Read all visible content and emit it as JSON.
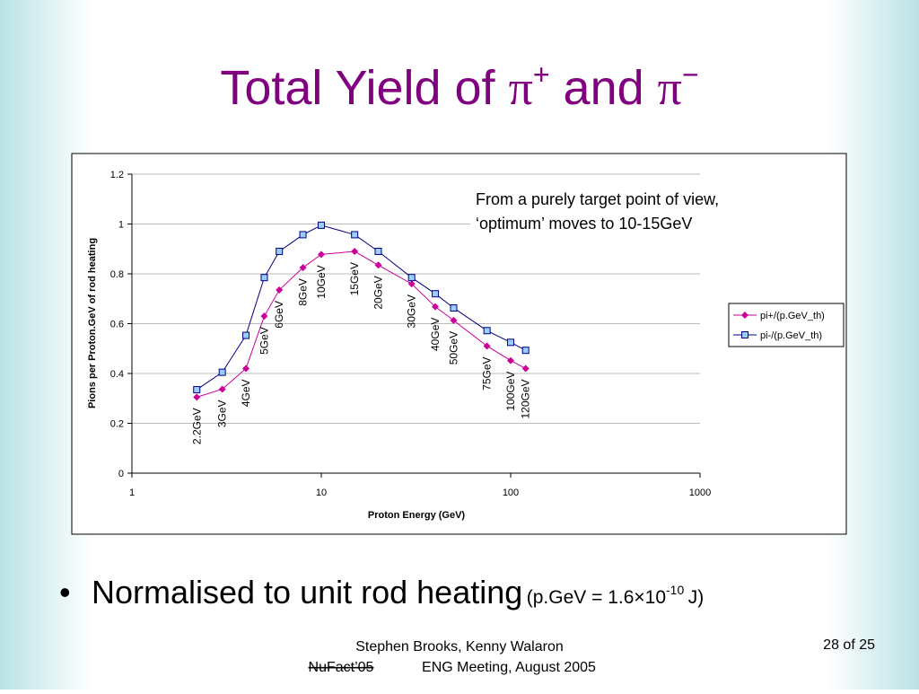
{
  "slide": {
    "title": [
      "Total Yield of",
      "π",
      "+",
      "and",
      "π",
      "−"
    ],
    "bullet": {
      "main": "Normalised to unit rod heating",
      "note": "(p.GeV = 1.6×10",
      "exponent": "-10",
      "unit": "J)"
    },
    "footer": {
      "authors": "Stephen Brooks, Kenny Walaron",
      "struck": "NuFact’05",
      "event": "ENG Meeting, August 2005",
      "page": "28 of 25"
    }
  },
  "chart_data": {
    "type": "line",
    "x_label": "Proton Energy (GeV)",
    "y_label": "Pions per Proton.GeV of rod heating",
    "annotation": [
      "From a purely target point of view,",
      "‘optimum’ moves to 10-15GeV"
    ],
    "x": [
      2.2,
      3,
      4,
      5,
      6,
      8,
      10,
      15,
      20,
      30,
      40,
      50,
      75,
      100,
      120
    ],
    "point_labels": [
      "2.2GeV",
      "3GeV",
      "4GeV",
      "5GeV",
      "6GeV",
      "8GeV",
      "10GeV",
      "15GeV",
      "20GeV",
      "30GeV",
      "40GeV",
      "50GeV",
      "75GeV",
      "100GeV",
      "120GeV"
    ],
    "series": [
      {
        "name": "pi+/(p.GeV_th)",
        "color": "#cc0099",
        "marker": "diamond",
        "values": [
          0.305,
          0.337,
          0.42,
          0.63,
          0.735,
          0.825,
          0.878,
          0.89,
          0.835,
          0.76,
          0.668,
          0.613,
          0.51,
          0.452,
          0.42
        ]
      },
      {
        "name": "pi-/(p.GeV_th)",
        "color": "#000080",
        "marker": "square",
        "values": [
          0.335,
          0.405,
          0.553,
          0.785,
          0.89,
          0.957,
          0.995,
          0.957,
          0.89,
          0.785,
          0.72,
          0.663,
          0.572,
          0.525,
          0.493
        ]
      }
    ],
    "xlim": [
      1,
      1000
    ],
    "xticks": [
      1,
      10,
      100,
      1000
    ],
    "xscale": "log",
    "ylim": [
      0,
      1.2
    ],
    "yticks": [
      0,
      0.2,
      0.4,
      0.6,
      0.8,
      1,
      1.2
    ],
    "grid": true,
    "legend": "right"
  }
}
